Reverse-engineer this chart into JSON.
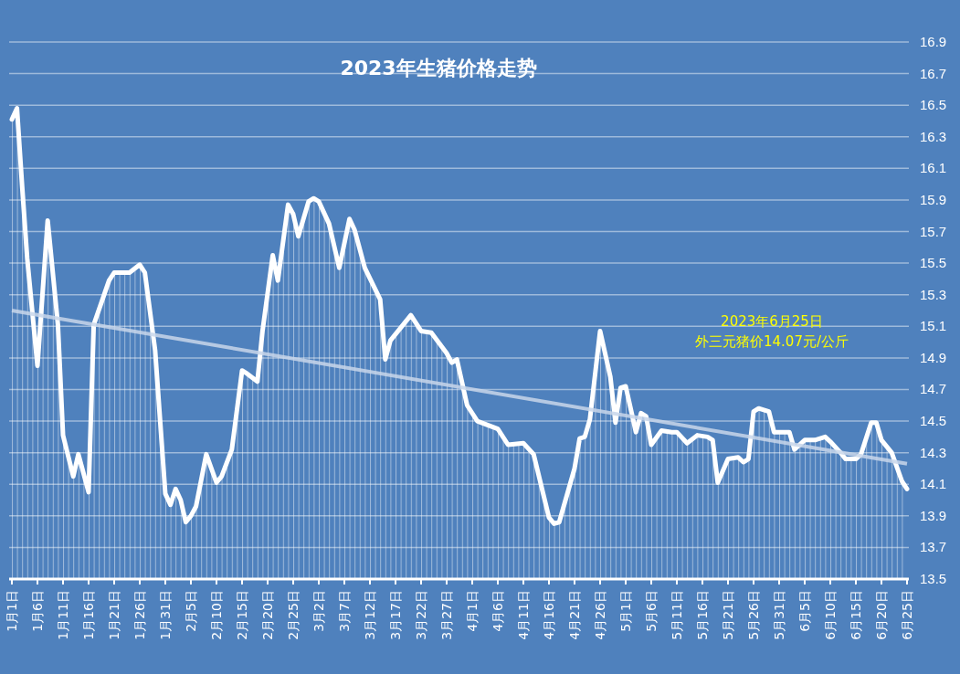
{
  "chart_data": {
    "type": "area",
    "title": "2023年生猪价格走势",
    "annotations": [
      "2023年6月25日",
      "外三元猪价14.07元/公斤"
    ],
    "xlim": [
      "--01-01",
      "--06-25"
    ],
    "xticks": [
      {
        "value": "--01-01",
        "label": "1月1日"
      },
      {
        "value": "--01-06",
        "label": "1月6日"
      },
      {
        "value": "--01-11",
        "label": "1月11日"
      },
      {
        "value": "--01-16",
        "label": "1月16日"
      },
      {
        "value": "--01-21",
        "label": "1月21日"
      },
      {
        "value": "--01-26",
        "label": "1月26日"
      },
      {
        "value": "--01-31",
        "label": "1月31日"
      },
      {
        "value": "--02-05",
        "label": "2月5日"
      },
      {
        "value": "--02-10",
        "label": "2月10日"
      },
      {
        "value": "--02-15",
        "label": "2月15日"
      },
      {
        "value": "--02-20",
        "label": "2月20日"
      },
      {
        "value": "--02-25",
        "label": "2月25日"
      },
      {
        "value": "--03-02",
        "label": "3月2日"
      },
      {
        "value": "--03-07",
        "label": "3月7日"
      },
      {
        "value": "--03-12",
        "label": "3月12日"
      },
      {
        "value": "--03-17",
        "label": "3月17日"
      },
      {
        "value": "--03-22",
        "label": "3月22日"
      },
      {
        "value": "--03-27",
        "label": "3月27日"
      },
      {
        "value": "--04-01",
        "label": "4月1日"
      },
      {
        "value": "--04-06",
        "label": "4月6日"
      },
      {
        "value": "--04-11",
        "label": "4月11日"
      },
      {
        "value": "--04-16",
        "label": "4月16日"
      },
      {
        "value": "--04-21",
        "label": "4月21日"
      },
      {
        "value": "--04-26",
        "label": "4月26日"
      },
      {
        "value": "--05-01",
        "label": "5月1日"
      },
      {
        "value": "--05-06",
        "label": "5月6日"
      },
      {
        "value": "--05-11",
        "label": "5月11日"
      },
      {
        "value": "--05-16",
        "label": "5月16日"
      },
      {
        "value": "--05-21",
        "label": "5月21日"
      },
      {
        "value": "--05-26",
        "label": "5月26日"
      },
      {
        "value": "--05-31",
        "label": "5月31日"
      },
      {
        "value": "--06-05",
        "label": "6月5日"
      },
      {
        "value": "--06-10",
        "label": "6月10日"
      },
      {
        "value": "--06-15",
        "label": "6月15日"
      },
      {
        "value": "--06-20",
        "label": "6月20日"
      },
      {
        "value": "--06-25",
        "label": "6月25日"
      }
    ],
    "ylim": [
      13.5,
      16.9
    ],
    "yticks": [
      13.5,
      13.7,
      13.9,
      14.1,
      14.3,
      14.5,
      14.7,
      14.9,
      15.1,
      15.3,
      15.5,
      15.7,
      15.9,
      16.1,
      16.3,
      16.5,
      16.7,
      16.9
    ],
    "grid": "y",
    "series": [
      {
        "color": "#ffffff",
        "x": [
          "--01-01",
          "--01-02",
          "--01-03",
          "--01-04",
          "--01-06",
          "--01-08",
          "--01-10",
          "--01-11",
          "--01-13",
          "--01-14",
          "--01-16",
          "--01-17",
          "--01-20",
          "--01-21",
          "--01-24",
          "--01-26",
          "--01-27",
          "--01-29",
          "--01-31",
          "--02-01",
          "--02-02",
          "--02-03",
          "--02-04",
          "--02-05",
          "--02-06",
          "--02-08",
          "--02-10",
          "--02-11",
          "--02-13",
          "--02-15",
          "--02-16",
          "--02-18",
          "--02-19",
          "--02-21",
          "--02-22",
          "--02-24",
          "--02-25",
          "--02-26",
          "--02-28",
          "--03-01",
          "--03-02",
          "--03-04",
          "--03-06",
          "--03-08",
          "--03-09",
          "--03-11",
          "--03-14",
          "--03-15",
          "--03-16",
          "--03-20",
          "--03-22",
          "--03-24",
          "--03-27",
          "--03-28",
          "--03-29",
          "--03-31",
          "--04-02",
          "--04-06",
          "--04-08",
          "--04-11",
          "--04-13",
          "--04-16",
          "--04-17",
          "--04-18",
          "--04-21",
          "--04-22",
          "--04-23",
          "--04-24",
          "--04-26",
          "--04-28",
          "--04-29",
          "--04-30",
          "--05-01",
          "--05-03",
          "--05-04",
          "--05-05",
          "--05-06",
          "--05-08",
          "--05-10",
          "--05-11",
          "--05-13",
          "--05-15",
          "--05-17",
          "--05-18",
          "--05-19",
          "--05-21",
          "--05-23",
          "--05-24",
          "--05-25",
          "--05-26",
          "--05-27",
          "--05-29",
          "--05-30",
          "--06-02",
          "--06-03",
          "--06-05",
          "--06-07",
          "--06-09",
          "--06-10",
          "--06-12",
          "--06-13",
          "--06-15",
          "--06-16",
          "--06-18",
          "--06-19",
          "--06-20",
          "--06-22",
          "--06-24",
          "--06-25"
        ],
        "values": [
          16.41,
          16.48,
          15.99,
          15.53,
          14.85,
          15.77,
          15.11,
          14.41,
          14.15,
          14.29,
          14.05,
          15.11,
          15.39,
          15.44,
          15.44,
          15.49,
          15.44,
          14.95,
          14.04,
          13.97,
          14.07,
          14.0,
          13.86,
          13.9,
          13.96,
          14.29,
          14.11,
          14.15,
          14.32,
          14.82,
          14.8,
          14.75,
          15.07,
          15.55,
          15.39,
          15.87,
          15.81,
          15.67,
          15.89,
          15.91,
          15.89,
          15.75,
          15.47,
          15.78,
          15.71,
          15.47,
          15.27,
          14.89,
          15.01,
          15.17,
          15.07,
          15.06,
          14.93,
          14.87,
          14.89,
          14.6,
          14.5,
          14.45,
          14.35,
          14.36,
          14.29,
          13.89,
          13.85,
          13.86,
          14.2,
          14.39,
          14.4,
          14.51,
          15.07,
          14.78,
          14.49,
          14.71,
          14.72,
          14.43,
          14.55,
          14.53,
          14.35,
          14.44,
          14.43,
          14.43,
          14.36,
          14.41,
          14.4,
          14.38,
          14.11,
          14.26,
          14.27,
          14.24,
          14.26,
          14.56,
          14.58,
          14.56,
          14.43,
          14.43,
          14.32,
          14.38,
          14.38,
          14.4,
          14.37,
          14.3,
          14.26,
          14.26,
          14.29,
          14.49,
          14.49,
          14.38,
          14.3,
          14.12,
          14.07
        ]
      },
      {
        "type": "line",
        "color": "#c8d6ea",
        "x": [
          "--01-01",
          "--06-25"
        ],
        "values": [
          15.2,
          14.23
        ]
      }
    ]
  }
}
